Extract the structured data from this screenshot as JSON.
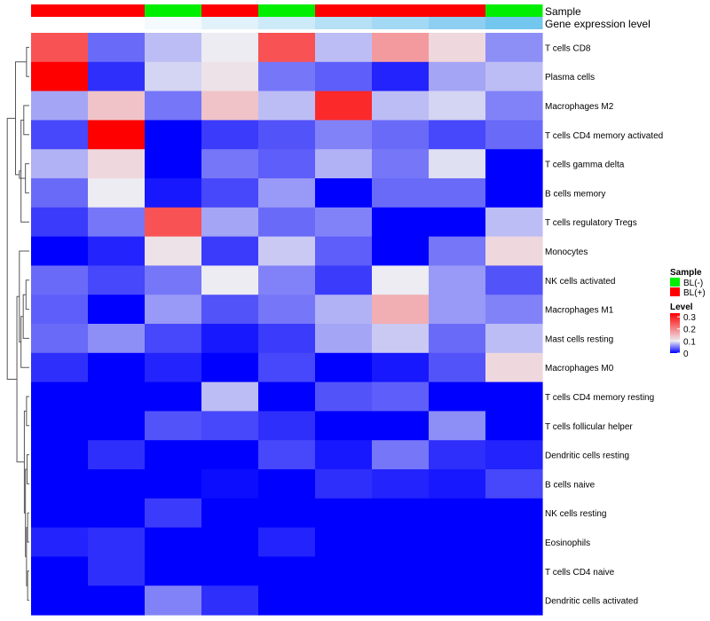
{
  "chart_data": {
    "type": "heatmap",
    "annotation_labels": [
      "Sample",
      "Gene expression level"
    ],
    "sample_groups": [
      "BL(+)",
      "BL(+)",
      "BL(-)",
      "BL(+)",
      "BL(-)",
      "BL(+)",
      "BL(+)",
      "BL(+)",
      "BL(-)"
    ],
    "expression_shades": [
      "#ffffff",
      "#ffffff",
      "#f4fafd",
      "#e2f2fa",
      "#cdeaf8",
      "#b5e0f5",
      "#a3d9f4",
      "#8ecff1",
      "#73c6ee"
    ],
    "rows": [
      "T cells CD8",
      "Plasma cells",
      "Macrophages M2",
      "T cells CD4 memory activated",
      "T cells gamma delta",
      "B cells memory",
      "T cells regulatory  Tregs",
      "Monocytes",
      "NK cells activated",
      "Macrophages M1",
      "Mast cells resting",
      "Macrophages M0",
      "T cells CD4 memory resting",
      "T cells follicular helper",
      "Dendritic cells resting",
      "B cells naive",
      "NK cells resting",
      "Eosinophils",
      "T cells CD4 naive",
      "Dendritic cells activated"
    ],
    "values": [
      [
        0.25,
        0.045,
        0.08,
        0.1,
        0.25,
        0.08,
        0.18,
        0.12,
        0.06
      ],
      [
        0.33,
        0.02,
        0.09,
        0.11,
        0.05,
        0.04,
        0.015,
        0.07,
        0.08
      ],
      [
        0.07,
        0.14,
        0.05,
        0.14,
        0.08,
        0.29,
        0.08,
        0.09,
        0.055
      ],
      [
        0.03,
        0.33,
        0.0,
        0.025,
        0.035,
        0.055,
        0.045,
        0.03,
        0.045
      ],
      [
        0.075,
        0.12,
        0.0,
        0.05,
        0.04,
        0.075,
        0.05,
        0.095,
        0.0
      ],
      [
        0.045,
        0.1,
        0.01,
        0.03,
        0.065,
        0.0,
        0.045,
        0.045,
        0.0
      ],
      [
        0.025,
        0.05,
        0.25,
        0.07,
        0.045,
        0.055,
        0.0,
        0.0,
        0.08
      ],
      [
        0.0,
        0.015,
        0.11,
        0.025,
        0.085,
        0.04,
        0.0,
        0.05,
        0.12
      ],
      [
        0.045,
        0.03,
        0.05,
        0.1,
        0.055,
        0.025,
        0.1,
        0.065,
        0.035
      ],
      [
        0.04,
        0.0,
        0.065,
        0.035,
        0.05,
        0.075,
        0.16,
        0.065,
        0.055
      ],
      [
        0.045,
        0.06,
        0.03,
        0.01,
        0.025,
        0.07,
        0.085,
        0.045,
        0.08
      ],
      [
        0.02,
        0.0,
        0.015,
        0.0,
        0.03,
        0.0,
        0.01,
        0.035,
        0.12
      ],
      [
        0.0,
        0.0,
        0.0,
        0.08,
        0.0,
        0.035,
        0.04,
        0.0,
        0.0
      ],
      [
        0.0,
        0.0,
        0.035,
        0.03,
        0.02,
        0.0,
        0.0,
        0.06,
        0.0
      ],
      [
        0.0,
        0.02,
        0.0,
        0.0,
        0.03,
        0.01,
        0.05,
        0.02,
        0.015
      ],
      [
        0.0,
        0.0,
        0.0,
        0.005,
        0.0,
        0.02,
        0.015,
        0.01,
        0.03
      ],
      [
        0.0,
        0.0,
        0.025,
        0.0,
        0.0,
        0.0,
        0.0,
        0.0,
        0.0
      ],
      [
        0.015,
        0.02,
        0.0,
        0.0,
        0.015,
        0.0,
        0.0,
        0.0,
        0.0
      ],
      [
        0.0,
        0.02,
        0.0,
        0.0,
        0.0,
        0.0,
        0.0,
        0.0,
        0.0
      ],
      [
        0.0,
        0.0,
        0.055,
        0.02,
        0.0,
        0.0,
        0.0,
        0.0,
        0.0
      ]
    ],
    "color_scale": {
      "min": 0,
      "max": 0.33,
      "stops": [
        {
          "value": 0,
          "color": "#0000ff"
        },
        {
          "value": 0.1,
          "color": "#ececf2"
        },
        {
          "value": 0.33,
          "color": "#ff0000"
        }
      ]
    },
    "legend": {
      "sample_title": "Sample",
      "sample_items": [
        {
          "label": "BL(-)",
          "color": "#00ee00"
        },
        {
          "label": "BL(+)",
          "color": "#ff0000"
        }
      ],
      "level_title": "Level",
      "level_ticks": [
        "0.3",
        "0.2",
        "0.1",
        "0"
      ],
      "level_tick_values": [
        0.3,
        0.2,
        0.1,
        0
      ]
    },
    "dendrogram": [
      [
        0,
        1,
        0.1
      ],
      [
        2,
        3,
        0.2
      ],
      [
        4,
        5,
        0.14
      ],
      [
        21,
        6,
        0.3
      ],
      [
        22,
        23,
        0.36
      ],
      [
        20,
        24,
        0.5
      ],
      [
        8,
        9,
        0.12
      ],
      [
        26,
        10,
        0.22
      ],
      [
        27,
        11,
        0.3
      ],
      [
        7,
        28,
        0.36
      ],
      [
        12,
        13,
        0.1
      ],
      [
        14,
        15,
        0.08
      ],
      [
        16,
        17,
        0.06
      ],
      [
        18,
        19,
        0.06
      ],
      [
        32,
        33,
        0.1
      ],
      [
        31,
        34,
        0.14
      ],
      [
        30,
        35,
        0.18
      ],
      [
        29,
        36,
        0.45
      ],
      [
        25,
        37,
        0.8
      ]
    ]
  }
}
